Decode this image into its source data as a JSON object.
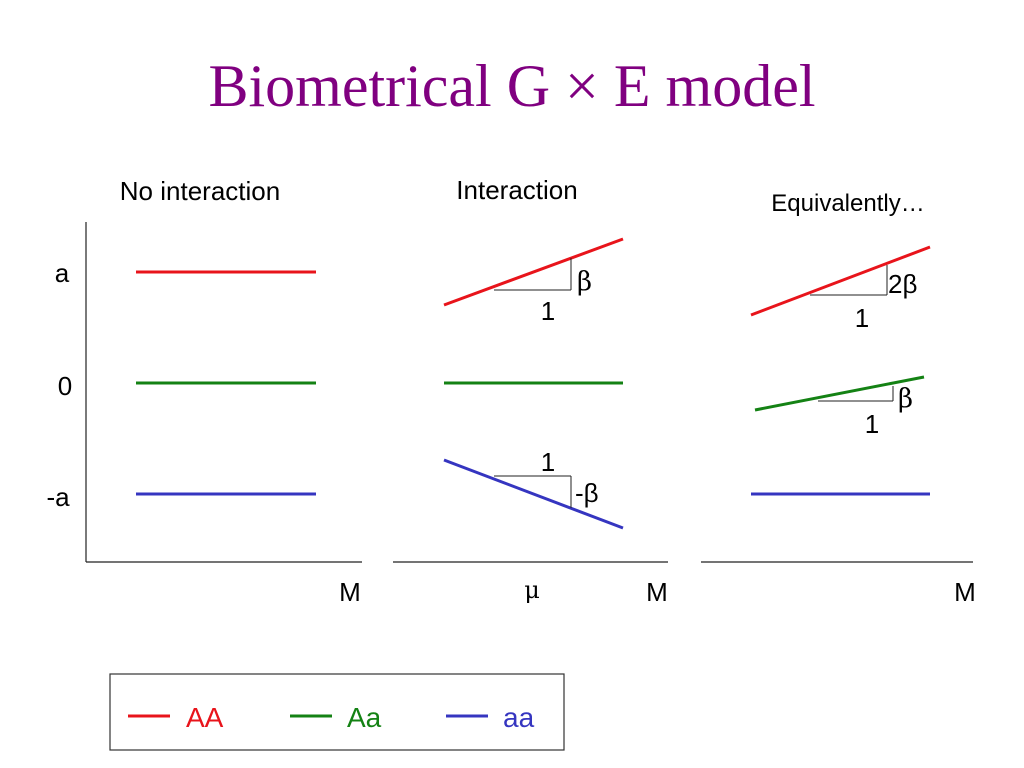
{
  "title": "Biometrical G × E model",
  "colors": {
    "title": "#800080",
    "AA": "#e8141b",
    "Aa": "#148214",
    "aa": "#3535c0",
    "axis": "#222222",
    "text": "#000000"
  },
  "panels": {
    "no_interaction": {
      "heading": "No interaction",
      "y_labels": [
        "a",
        "0",
        "-a"
      ],
      "x_label": "M"
    },
    "interaction": {
      "heading": "Interaction",
      "slope_pos": {
        "run": "1",
        "rise": "β"
      },
      "slope_neg": {
        "run": "1",
        "rise": "-β"
      },
      "x_mean": "μ",
      "x_label": "M"
    },
    "equivalently": {
      "heading": "Equivalently…",
      "slope_AA": {
        "run": "1",
        "rise": "2β"
      },
      "slope_Aa": {
        "run": "1",
        "rise": "β"
      },
      "x_label": "M"
    }
  },
  "legend": [
    {
      "key": "AA",
      "label": "AA"
    },
    {
      "key": "Aa",
      "label": "Aa"
    },
    {
      "key": "aa",
      "label": "aa"
    }
  ]
}
